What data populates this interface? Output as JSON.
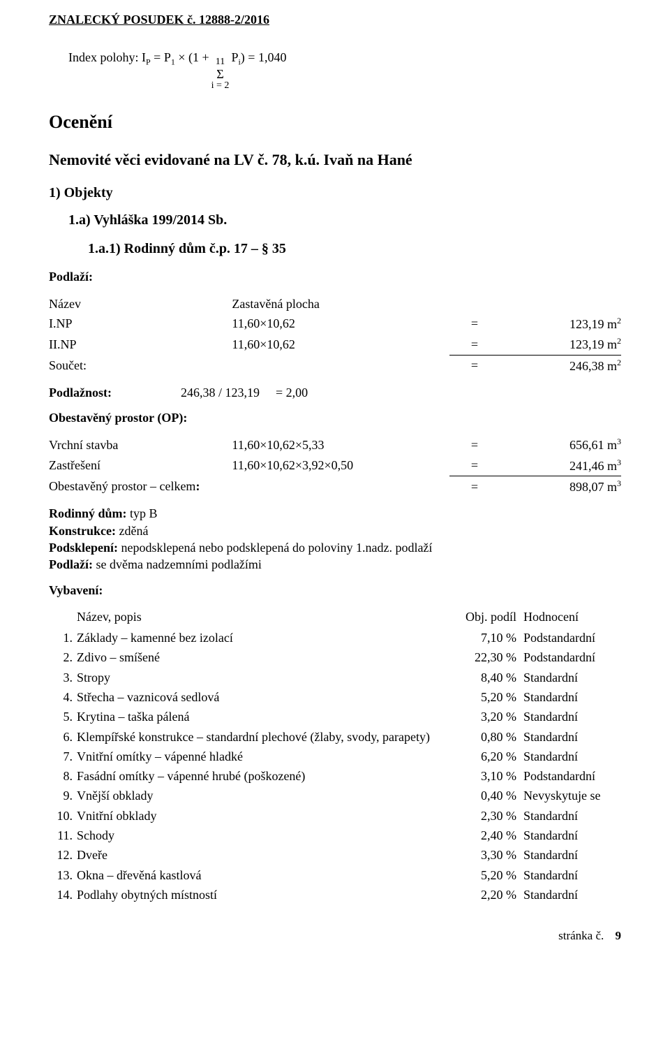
{
  "header": {
    "title": "ZNALECKÝ   POSUDEK č. 12888-2/2016"
  },
  "formula": {
    "label": "Index polohy: I",
    "sub1": "P",
    "eqpart1": " = P",
    "sub2": "1",
    "times": " × (1 + ",
    "sum_top": "11",
    "sum_sym": "Σ",
    "sum_bot": "i = 2",
    "eqpart2": " P",
    "sub3": "i",
    "eqpart3": ") = 1,040"
  },
  "section_main": "Ocenění",
  "section_sub": "Nemovité věci evidované na LV č. 78, k.ú. Ivaň na Hané",
  "lvl1": "1) Objekty",
  "lvl2a": "1.a) Vyhláška 199/2014 Sb.",
  "lvl2b": "1.a.1) Rodinný dům č.p. 17 – § 35",
  "podlazi": {
    "heading": "Podlaží:",
    "col_name": "Název",
    "col_area": "Zastavěná plocha",
    "rows": [
      {
        "name": "I.NP",
        "expr": "11,60×10,62",
        "eq": "=",
        "val": "123,19 m",
        "exp": "2"
      },
      {
        "name": "II.NP",
        "expr": "11,60×10,62",
        "eq": "=",
        "val": "123,19 m",
        "exp": "2"
      }
    ],
    "sum_label": "Součet:",
    "sum_eq": "=",
    "sum_val": "246,38 m",
    "sum_exp": "2"
  },
  "podlaznost": {
    "label": "Podlažnost:",
    "expr": "246,38 / 123,19",
    "eq": "= 2,00"
  },
  "op": {
    "heading": "Obestavěný prostor (OP):",
    "rows": [
      {
        "name": "Vrchní stavba",
        "expr": "11,60×10,62×5,33",
        "eq": "=",
        "val": "656,61 m",
        "exp": "3"
      },
      {
        "name": "Zastřešení",
        "expr": "11,60×10,62×3,92×0,50",
        "eq": "=",
        "val": "241,46 m",
        "exp": "3"
      }
    ],
    "total_label": "Obestavěný prostor – celkem",
    "total_colon": ":",
    "total_eq": "=",
    "total_val": "898,07 m",
    "total_exp": "3"
  },
  "desc": {
    "l1a": "Rodinný dům:",
    "l1b": " typ B",
    "l2a": "Konstrukce:",
    "l2b": " zděná",
    "l3a": "Podsklepení:",
    "l3b": " nepodsklepená nebo podsklepená do poloviny 1.nadz. podlaží",
    "l4a": "Podlaží:",
    "l4b": " se dvěma nadzemními podlažími"
  },
  "vyb": {
    "heading": "Vybavení:",
    "col_name": "Název, popis",
    "col_pct": "Obj. podíl",
    "col_rating": "Hodnocení",
    "rows": [
      {
        "n": "1.",
        "name": "Základy – kamenné bez izolací",
        "pct": "7,10 %",
        "rating": "Podstandardní"
      },
      {
        "n": "2.",
        "name": "Zdivo – smíšené",
        "pct": "22,30 %",
        "rating": "Podstandardní"
      },
      {
        "n": "3.",
        "name": "Stropy",
        "pct": "8,40 %",
        "rating": "Standardní"
      },
      {
        "n": "4.",
        "name": "Střecha – vaznicová sedlová",
        "pct": "5,20 %",
        "rating": "Standardní"
      },
      {
        "n": "5.",
        "name": "Krytina – taška pálená",
        "pct": "3,20 %",
        "rating": "Standardní"
      },
      {
        "n": "6.",
        "name": "Klempířské konstrukce – standardní plechové (žlaby, svody, parapety)",
        "pct": "0,80 %",
        "rating": "Standardní"
      },
      {
        "n": "7.",
        "name": "Vnitřní omítky – vápenné hladké",
        "pct": "6,20 %",
        "rating": "Standardní"
      },
      {
        "n": "8.",
        "name": "Fasádní omítky – vápenné hrubé (poškozené)",
        "pct": "3,10 %",
        "rating": "Podstandardní"
      },
      {
        "n": "9.",
        "name": "Vnější obklady",
        "pct": "0,40 %",
        "rating": "Nevyskytuje se"
      },
      {
        "n": "10.",
        "name": "Vnitřní obklady",
        "pct": "2,30 %",
        "rating": "Standardní"
      },
      {
        "n": "11.",
        "name": "Schody",
        "pct": "2,40 %",
        "rating": "Standardní"
      },
      {
        "n": "12.",
        "name": "Dveře",
        "pct": "3,30 %",
        "rating": "Standardní"
      },
      {
        "n": "13.",
        "name": "Okna – dřevěná kastlová",
        "pct": "5,20 %",
        "rating": "Standardní"
      },
      {
        "n": "14.",
        "name": "Podlahy obytných místností",
        "pct": "2,20 %",
        "rating": "Standardní"
      }
    ]
  },
  "footer": {
    "label": "stránka č.",
    "num": "9"
  }
}
